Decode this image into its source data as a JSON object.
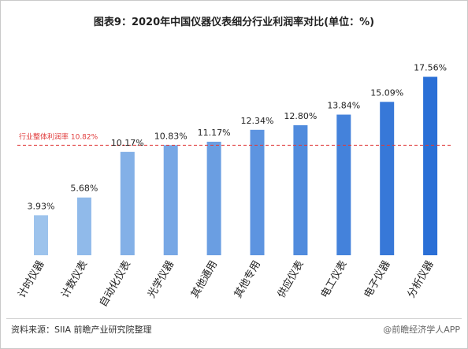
{
  "title": "图表9：2020年中国仪器仪表细分行业利润率对比(单位：%)",
  "source": "资料来源：SIIA 前瞻产业研究院整理",
  "brand": "@前瞻经济学人APP",
  "colors": {
    "bar_light": "#9dc3ec",
    "bar_dark": "#2a6fd6",
    "reference_line": "#e03a3a",
    "label": "#222222"
  },
  "chart_data": {
    "type": "bar",
    "categories": [
      "计时仪器",
      "计数仪表",
      "自动化仪表",
      "光学仪器",
      "其他通用",
      "其他专用",
      "供应仪表",
      "电工仪表",
      "电子仪器",
      "分析仪器"
    ],
    "values": [
      3.93,
      5.68,
      10.17,
      10.83,
      11.17,
      12.34,
      12.8,
      13.84,
      15.09,
      17.56
    ],
    "value_labels": [
      "3.93%",
      "5.68%",
      "10.17%",
      "10.83%",
      "11.17%",
      "12.34%",
      "12.80%",
      "13.84%",
      "15.09%",
      "17.56%"
    ],
    "ylim": [
      0,
      20
    ],
    "reference": {
      "value": 10.82,
      "label": "行业整体利润率 10.82%"
    },
    "grid": false,
    "legend": "none"
  }
}
